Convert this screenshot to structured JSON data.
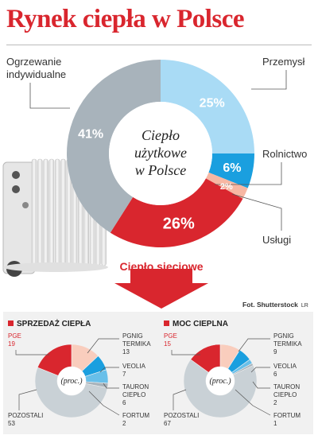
{
  "title": "Rynek ciepła w Polsce",
  "colors": {
    "accent": "#d9262e",
    "gray": "#a8b3bb",
    "light_blue": "#a9dbf5",
    "blue": "#1a9fdf",
    "salmon": "#f7b7a3",
    "pale_salmon": "#f9cdbd",
    "pale_gray": "#c9d1d6",
    "mid_blue": "#68bfe9"
  },
  "main_chart": {
    "center_text": [
      "Ciepło",
      "użytkowe",
      "w Polsce"
    ],
    "arrow_label": "Ciepło sieciowe",
    "labels": {
      "ogrzewanie": [
        "Ogrzewanie",
        "indywidualne"
      ],
      "przemysl": "Przemysł",
      "rolnictwo": "Rolnictwo",
      "uslugi": "Usługi"
    },
    "value_labels": {
      "ogrzewanie": "41%",
      "przemysl": "25%",
      "rolnictwo": "6%",
      "uslugi": "2%",
      "cieplo_sieciowe": "26%"
    }
  },
  "credit": {
    "text": "Fot. Shutterstock",
    "initials": "LR"
  },
  "sprzedaz": {
    "title": "SPRZEDAŻ CIEPŁA",
    "center": "(proc.)",
    "labels": {
      "pge": [
        "PGE",
        "19"
      ],
      "pgnig": [
        "PGNIG",
        "TERMIKA",
        "13"
      ],
      "veolia": [
        "VEOLIA",
        "7"
      ],
      "tauron": [
        "TAURON",
        "CIEPŁO",
        "6"
      ],
      "fortum": [
        "FORTUM",
        "2"
      ],
      "pozostali": [
        "POZOSTALI",
        "53"
      ]
    }
  },
  "moc": {
    "title": "MOC CIEPLNA",
    "center": "(proc.)",
    "labels": {
      "pge": [
        "PGE",
        "15"
      ],
      "pgnig": [
        "PGNIG",
        "TERMIKA",
        "9"
      ],
      "veolia": [
        "VEOLIA",
        "6"
      ],
      "tauron": [
        "TAURON",
        "CIEPŁO",
        "2"
      ],
      "fortum": [
        "FORTUM",
        "1"
      ],
      "pozostali": [
        "POZOSTALI",
        "67"
      ]
    }
  },
  "chart_data": [
    {
      "type": "pie",
      "title": "Rynek ciepła w Polsce",
      "center_label": "Ciepło użytkowe w Polsce",
      "categories": [
        "Ogrzewanie indywidualne",
        "Przemysł",
        "Rolnictwo",
        "Usługi",
        "Ciepło sieciowe"
      ],
      "values": [
        41,
        25,
        6,
        2,
        26
      ],
      "unit": "%",
      "colors": [
        "#a8b3bb",
        "#a9dbf5",
        "#1a9fdf",
        "#f7b7a3",
        "#d9262e"
      ]
    },
    {
      "type": "pie",
      "title": "SPRZEDAŻ CIEPŁA",
      "center_label": "(proc.)",
      "categories": [
        "PGE",
        "PGNIG TERMIKA",
        "VEOLIA",
        "TAURON CIEPŁO",
        "FORTUM",
        "POZOSTALI"
      ],
      "values": [
        19,
        13,
        7,
        6,
        2,
        53
      ],
      "colors": [
        "#d9262e",
        "#f9cdbd",
        "#1a9fdf",
        "#68bfe9",
        "#a8b3bb",
        "#c9d1d6"
      ]
    },
    {
      "type": "pie",
      "title": "MOC CIEPLNA",
      "center_label": "(proc.)",
      "categories": [
        "PGE",
        "PGNIG TERMIKA",
        "VEOLIA",
        "TAURON CIEPŁO",
        "FORTUM",
        "POZOSTALI"
      ],
      "values": [
        15,
        9,
        6,
        2,
        1,
        67
      ],
      "colors": [
        "#d9262e",
        "#f9cdbd",
        "#1a9fdf",
        "#68bfe9",
        "#a8b3bb",
        "#c9d1d6"
      ]
    }
  ]
}
